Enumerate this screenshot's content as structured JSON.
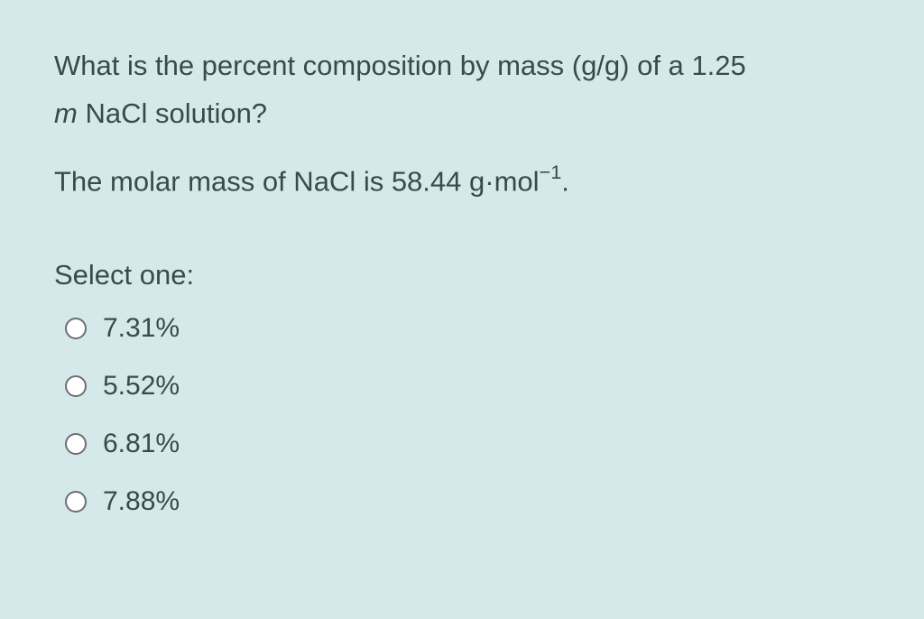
{
  "colors": {
    "background": "#d6e9ea",
    "text": "#3a4a4a",
    "radio_border": "#6a6f6f",
    "radio_fill": "#ffffff"
  },
  "question": {
    "line1": "What is the percent composition by mass (g/g) of a 1.25",
    "line2_prefix": "m",
    "line2_rest": " NaCl solution?",
    "info_prefix": "The molar mass of NaCl is 58.44 g·mol",
    "info_exp": "−1",
    "info_suffix": "."
  },
  "select_label": "Select one:",
  "options": [
    {
      "label": "7.31%"
    },
    {
      "label": "5.52%"
    },
    {
      "label": "6.81%"
    },
    {
      "label": "7.88%"
    }
  ]
}
